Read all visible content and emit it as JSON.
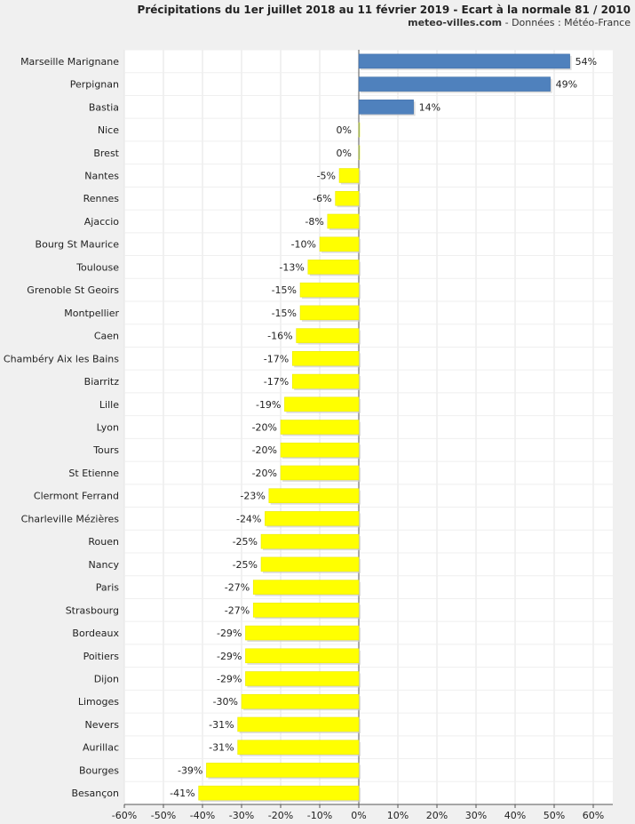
{
  "chart_data": {
    "type": "bar",
    "orientation": "horizontal",
    "title": "Précipitations du 1er juillet 2018 au 11 février 2019 - Ecart à la normale 81 / 2010",
    "subtitle_site": "meteo-villes.com",
    "subtitle_rest": " - Données : Météo-France",
    "xlabel": "",
    "ylabel": "",
    "xlim": [
      -60,
      65
    ],
    "x_ticks": [
      -60,
      -50,
      -40,
      -30,
      -20,
      -10,
      0,
      10,
      20,
      30,
      40,
      50,
      60
    ],
    "tick_suffix": "%",
    "grid": true,
    "categories": [
      "Marseille Marignane",
      "Perpignan",
      "Bastia",
      "Nice",
      "Brest",
      "Nantes",
      "Rennes",
      "Ajaccio",
      "Bourg St Maurice",
      "Toulouse",
      "Grenoble St Geoirs",
      "Montpellier",
      "Caen",
      "Chambéry Aix les Bains",
      "Biarritz",
      "Lille",
      "Lyon",
      "Tours",
      "St Etienne",
      "Clermont Ferrand",
      "Charleville Mézières",
      "Rouen",
      "Nancy",
      "Paris",
      "Strasbourg",
      "Bordeaux",
      "Poitiers",
      "Dijon",
      "Limoges",
      "Nevers",
      "Aurillac",
      "Bourges",
      "Besançon"
    ],
    "values": [
      54,
      49,
      14,
      0,
      0,
      -5,
      -6,
      -8,
      -10,
      -13,
      -15,
      -15,
      -16,
      -17,
      -17,
      -19,
      -20,
      -20,
      -20,
      -23,
      -24,
      -25,
      -25,
      -27,
      -27,
      -29,
      -29,
      -29,
      -30,
      -31,
      -31,
      -39,
      -41
    ],
    "labels": [
      "54%",
      "49%",
      "14%",
      "0%",
      "0%",
      "-5%",
      "-6%",
      "-8%",
      "-10%",
      "-13%",
      "-15%",
      "-15%",
      "-16%",
      "-17%",
      "-17%",
      "-19%",
      "-20%",
      "-20%",
      "-20%",
      "-23%",
      "-24%",
      "-25%",
      "-25%",
      "-27%",
      "-27%",
      "-29%",
      "-29%",
      "-29%",
      "-30%",
      "-31%",
      "-31%",
      "-39%",
      "-41%"
    ],
    "colors": {
      "positive": "#4f81bd",
      "negative": "#ffff00",
      "grid": "#e3e3e3",
      "plot_bg": "#ffffff",
      "page_bg": "#f0f0f0",
      "axis": "#555555",
      "text": "#222222"
    }
  }
}
